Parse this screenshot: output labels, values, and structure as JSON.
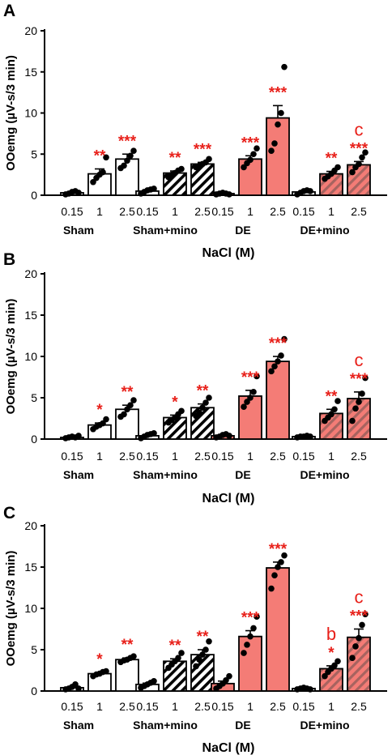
{
  "colors": {
    "open_bar": "#ffffff",
    "de_bar": "#f47c76",
    "de_hatch_bar": "#c9706b",
    "stroke": "#000000",
    "significance": "#e8201a"
  },
  "chart_data": [
    {
      "type": "bar",
      "panel": "A",
      "ylabel": "OOemg (µV-s/3 min)",
      "xlabel": "NaCl (M)",
      "ylim": [
        0,
        20
      ],
      "yticks": [
        "0",
        "5",
        "10",
        "15",
        "20"
      ],
      "groups": [
        "Sham",
        "Sham+mino",
        "DE",
        "DE+mino"
      ],
      "categories": [
        "0.15",
        "1",
        "2.5"
      ],
      "series": [
        {
          "group": "Sham",
          "values": [
            0.3,
            2.6,
            4.4
          ],
          "sem": [
            0.15,
            0.6,
            0.6
          ],
          "points": [
            [
              0.1,
              0.2,
              0.4,
              0.5,
              0.3
            ],
            [
              1.6,
              2.1,
              2.5,
              2.8,
              4.6
            ],
            [
              3.3,
              3.6,
              4.2,
              4.8,
              5.4
            ]
          ],
          "significance": [
            "",
            "**",
            "***"
          ]
        },
        {
          "group": "Sham+mino",
          "values": [
            0.5,
            2.7,
            3.8
          ],
          "sem": [
            0.12,
            0.25,
            0.2
          ],
          "points": [
            [
              0.2,
              0.4,
              0.6,
              0.7,
              0.8
            ],
            [
              2.2,
              2.5,
              2.7,
              3.0,
              3.2
            ],
            [
              3.4,
              3.6,
              3.8,
              4.0,
              4.4
            ]
          ],
          "significance": [
            "",
            "**",
            "***"
          ]
        },
        {
          "group": "DE",
          "values": [
            0.2,
            4.4,
            9.4
          ],
          "sem": [
            0.05,
            0.4,
            1.5
          ],
          "points": [
            [
              0.1,
              0.2,
              0.3,
              0.2,
              0.1
            ],
            [
              3.4,
              3.9,
              4.3,
              5.0,
              5.7
            ],
            [
              5.4,
              6.3,
              8.6,
              10.0,
              15.6
            ]
          ],
          "significance": [
            "",
            "***",
            "***"
          ]
        },
        {
          "group": "DE+mino",
          "values": [
            0.4,
            2.6,
            3.7
          ],
          "sem": [
            0.1,
            0.3,
            0.4
          ],
          "points": [
            [
              0.1,
              0.3,
              0.5,
              0.6,
              0.5
            ],
            [
              2.0,
              2.3,
              2.6,
              3.0,
              3.4
            ],
            [
              2.8,
              3.4,
              3.8,
              4.6,
              5.2
            ]
          ],
          "significance": [
            "",
            "**",
            "***"
          ],
          "letters": [
            "",
            "",
            "c"
          ]
        }
      ]
    },
    {
      "type": "bar",
      "panel": "B",
      "ylabel": "OOemg (µV-s/3 min)",
      "xlabel": "NaCl (M)",
      "ylim": [
        0,
        20
      ],
      "yticks": [
        "0",
        "5",
        "10",
        "15",
        "20"
      ],
      "groups": [
        "Sham",
        "Sham+mino",
        "DE",
        "DE+mino"
      ],
      "categories": [
        "0.15",
        "1",
        "2.5"
      ],
      "series": [
        {
          "group": "Sham",
          "values": [
            0.2,
            1.7,
            3.6
          ],
          "sem": [
            0.08,
            0.25,
            0.5
          ],
          "points": [
            [
              0.1,
              0.2,
              0.3,
              0.2,
              0.4
            ],
            [
              1.2,
              1.5,
              1.7,
              1.9,
              2.4
            ],
            [
              2.7,
              3.0,
              3.6,
              4.1,
              4.7
            ]
          ],
          "significance": [
            "",
            "*",
            "**"
          ]
        },
        {
          "group": "Sham+mino",
          "values": [
            0.4,
            2.6,
            3.8
          ],
          "sem": [
            0.12,
            0.3,
            0.45
          ],
          "points": [
            [
              0.1,
              0.3,
              0.5,
              0.6,
              0.7
            ],
            [
              2.0,
              2.3,
              2.6,
              3.0,
              3.4
            ],
            [
              2.8,
              3.2,
              3.8,
              4.4,
              5.0
            ]
          ],
          "significance": [
            "",
            "*",
            "**"
          ]
        },
        {
          "group": "DE",
          "values": [
            0.4,
            5.2,
            9.4
          ],
          "sem": [
            0.12,
            0.7,
            0.6
          ],
          "points": [
            [
              0.2,
              0.3,
              0.5,
              0.6,
              0.4
            ],
            [
              3.9,
              4.5,
              5.0,
              5.7,
              7.6
            ],
            [
              8.2,
              8.8,
              9.4,
              10.1,
              12.1
            ]
          ],
          "significance": [
            "",
            "***",
            "***"
          ]
        },
        {
          "group": "DE+mino",
          "values": [
            0.3,
            3.1,
            4.9
          ],
          "sem": [
            0.05,
            0.5,
            0.8
          ],
          "points": [
            [
              0.2,
              0.3,
              0.3,
              0.4,
              0.3
            ],
            [
              2.2,
              2.6,
              3.0,
              3.6,
              4.6
            ],
            [
              2.2,
              3.7,
              4.5,
              5.5,
              7.4
            ]
          ],
          "significance": [
            "",
            "**",
            "***"
          ],
          "letters": [
            "",
            "",
            "c"
          ]
        }
      ]
    },
    {
      "type": "bar",
      "panel": "C",
      "ylabel": "OOemg (µV-s/3 min)",
      "xlabel": "NaCl (M)",
      "ylim": [
        0,
        20
      ],
      "yticks": [
        "0",
        "5",
        "10",
        "15",
        "20"
      ],
      "groups": [
        "Sham",
        "Sham+mino",
        "DE",
        "DE+mino"
      ],
      "categories": [
        "0.15",
        "1",
        "2.5"
      ],
      "series": [
        {
          "group": "Sham",
          "values": [
            0.4,
            2.1,
            3.8
          ],
          "sem": [
            0.15,
            0.15,
            0.2
          ],
          "points": [
            [
              0.2,
              0.3,
              0.5,
              0.8,
              0.3
            ],
            [
              1.8,
              2.0,
              2.1,
              2.3,
              2.4
            ],
            [
              3.5,
              3.7,
              3.8,
              4.0,
              4.2
            ]
          ],
          "significance": [
            "",
            "*",
            "**"
          ]
        },
        {
          "group": "Sham+mino",
          "values": [
            0.8,
            3.6,
            4.4
          ],
          "sem": [
            0.15,
            0.3,
            0.6
          ],
          "points": [
            [
              0.4,
              0.6,
              0.8,
              1.0,
              1.2
            ],
            [
              2.8,
              3.2,
              3.6,
              4.0,
              4.6
            ],
            [
              3.0,
              3.8,
              4.4,
              5.0,
              6.0
            ]
          ],
          "significance": [
            "",
            "**",
            "**"
          ]
        },
        {
          "group": "DE",
          "values": [
            0.9,
            6.6,
            14.9
          ],
          "sem": [
            0.3,
            0.7,
            0.7
          ],
          "points": [
            [
              0.3,
              0.6,
              0.9,
              1.3,
              1.8
            ],
            [
              4.6,
              5.6,
              6.6,
              7.6,
              9.0
            ],
            [
              12.4,
              14.0,
              15.0,
              15.6,
              16.4
            ]
          ],
          "significance": [
            "",
            "***",
            "***"
          ]
        },
        {
          "group": "DE+mino",
          "values": [
            0.3,
            2.7,
            6.5
          ],
          "sem": [
            0.05,
            0.35,
            1.0
          ],
          "points": [
            [
              0.2,
              0.3,
              0.4,
              0.3,
              0.2
            ],
            [
              1.8,
              2.3,
              2.7,
              3.1,
              3.6
            ],
            [
              4.0,
              5.4,
              6.4,
              8.0,
              9.3
            ]
          ],
          "significance": [
            "",
            "*",
            "***"
          ],
          "letters": [
            "",
            "b",
            "c"
          ]
        }
      ]
    }
  ]
}
